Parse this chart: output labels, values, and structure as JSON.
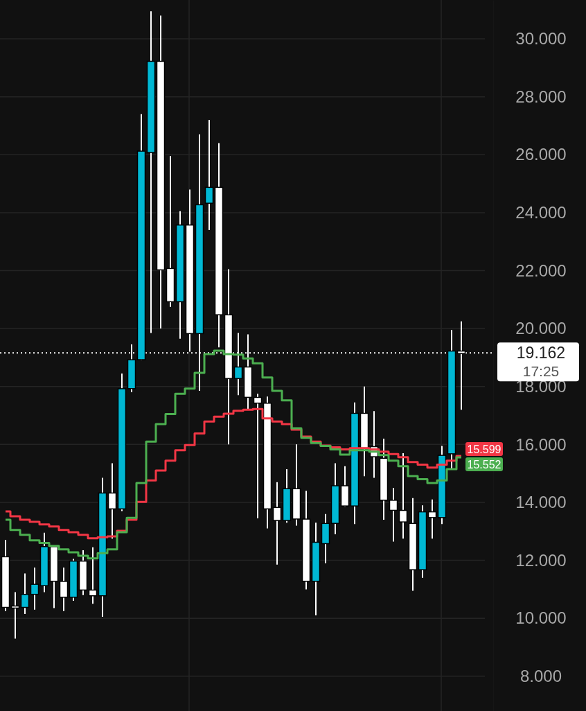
{
  "chart_data": {
    "type": "candlestick",
    "categories": [
      null,
      null,
      null,
      null,
      null,
      null,
      null,
      null,
      null,
      null,
      null,
      null,
      null,
      null,
      null,
      null,
      null,
      null,
      null,
      null,
      null,
      null,
      null,
      null,
      null,
      null,
      null,
      null,
      null,
      null,
      null,
      null,
      null,
      null,
      null,
      null,
      null,
      null,
      null,
      null,
      null,
      null,
      null,
      null,
      null,
      null,
      null,
      null
    ],
    "ohlc": [
      [
        12.1,
        12.7,
        10.25,
        10.4
      ],
      [
        10.4,
        10.9,
        9.3,
        10.4
      ],
      [
        10.4,
        11.55,
        10.15,
        10.8
      ],
      [
        10.85,
        11.75,
        10.3,
        11.15
      ],
      [
        11.15,
        12.95,
        10.9,
        12.45
      ],
      [
        12.45,
        12.45,
        10.35,
        11.3
      ],
      [
        11.25,
        11.75,
        10.25,
        10.75
      ],
      [
        10.75,
        12.05,
        10.6,
        11.95
      ],
      [
        11.95,
        12.35,
        10.8,
        11.0
      ],
      [
        10.95,
        12.45,
        10.5,
        10.8
      ],
      [
        10.8,
        14.85,
        10.05,
        14.3
      ],
      [
        14.3,
        15.35,
        12.75,
        13.8
      ],
      [
        13.8,
        18.45,
        13.7,
        17.9
      ],
      [
        17.95,
        19.45,
        17.8,
        18.9
      ],
      [
        18.95,
        27.4,
        18.9,
        26.1
      ],
      [
        26.1,
        30.95,
        19.85,
        29.2
      ],
      [
        29.2,
        30.8,
        20.0,
        22.05
      ],
      [
        22.05,
        25.95,
        20.75,
        20.95
      ],
      [
        20.95,
        24.05,
        19.65,
        23.55
      ],
      [
        23.55,
        24.8,
        19.2,
        19.85
      ],
      [
        19.85,
        26.7,
        17.85,
        24.25
      ],
      [
        24.35,
        27.2,
        23.4,
        24.85
      ],
      [
        24.85,
        26.4,
        19.35,
        20.5
      ],
      [
        20.45,
        22.05,
        16.0,
        18.3
      ],
      [
        18.3,
        19.85,
        17.7,
        18.65
      ],
      [
        18.65,
        19.8,
        17.2,
        17.65
      ],
      [
        17.6,
        17.75,
        13.45,
        17.45
      ],
      [
        17.4,
        17.65,
        13.1,
        13.8
      ],
      [
        13.8,
        14.7,
        11.85,
        13.4
      ],
      [
        13.4,
        15.15,
        13.3,
        14.45
      ],
      [
        14.45,
        16.0,
        13.2,
        13.45
      ],
      [
        13.4,
        14.4,
        11.0,
        11.3
      ],
      [
        11.3,
        13.3,
        10.1,
        12.6
      ],
      [
        12.6,
        13.6,
        11.9,
        13.25
      ],
      [
        13.3,
        15.35,
        12.9,
        14.55
      ],
      [
        14.55,
        15.25,
        13.85,
        13.9
      ],
      [
        13.9,
        17.45,
        13.25,
        17.05
      ],
      [
        17.05,
        18.0,
        14.9,
        15.9
      ],
      [
        15.9,
        17.15,
        14.85,
        15.6
      ],
      [
        15.5,
        16.2,
        13.4,
        14.1
      ],
      [
        14.05,
        14.5,
        12.65,
        13.75
      ],
      [
        13.7,
        15.7,
        12.75,
        13.35
      ],
      [
        13.25,
        14.15,
        10.95,
        11.7
      ],
      [
        11.7,
        13.9,
        11.4,
        13.65
      ],
      [
        13.65,
        14.1,
        12.75,
        13.5
      ],
      [
        13.5,
        15.95,
        13.25,
        15.6
      ],
      [
        15.7,
        19.95,
        15.15,
        19.2
      ],
      [
        19.2,
        20.25,
        17.2,
        19.162
      ]
    ],
    "colors": [
      "#ffffff",
      "#ffffff",
      "#00b8d4",
      "#00b8d4",
      "#00b8d4",
      "#ffffff",
      "#ffffff",
      "#00b8d4",
      "#ffffff",
      "#ffffff",
      "#00b8d4",
      "#ffffff",
      "#00b8d4",
      "#00b8d4",
      "#00b8d4",
      "#00b8d4",
      "#ffffff",
      "#ffffff",
      "#00b8d4",
      "#ffffff",
      "#00b8d4",
      "#00b8d4",
      "#ffffff",
      "#ffffff",
      "#00b8d4",
      "#ffffff",
      "#ffffff",
      "#ffffff",
      "#ffffff",
      "#00b8d4",
      "#ffffff",
      "#ffffff",
      "#00b8d4",
      "#00b8d4",
      "#00b8d4",
      "#ffffff",
      "#00b8d4",
      "#ffffff",
      "#ffffff",
      "#ffffff",
      "#ffffff",
      "#ffffff",
      "#ffffff",
      "#00b8d4",
      "#ffffff",
      "#00b8d4",
      "#00b8d4",
      "#ffffff"
    ],
    "series": [
      {
        "type": "step",
        "color": "#f23645",
        "values": [
          13.69,
          13.52,
          13.4,
          13.33,
          13.24,
          13.17,
          13.05,
          12.97,
          12.88,
          12.76,
          12.8,
          12.83,
          13.02,
          13.4,
          14.02,
          14.76,
          15.1,
          15.44,
          15.8,
          15.98,
          16.38,
          16.79,
          16.96,
          17.06,
          17.16,
          17.2,
          17.22,
          16.9,
          16.79,
          16.7,
          16.51,
          16.27,
          16.1,
          15.96,
          15.9,
          15.83,
          15.87,
          15.87,
          15.83,
          15.75,
          15.67,
          15.56,
          15.39,
          15.3,
          15.2,
          15.3,
          15.44,
          15.599
        ],
        "value_labels": [
          null,
          null,
          null,
          null,
          null,
          null,
          null,
          null,
          null,
          null,
          null,
          null,
          null,
          null,
          null,
          null,
          null,
          null,
          null,
          null,
          null,
          null,
          null,
          null,
          null,
          null,
          null,
          null,
          null,
          null,
          null,
          null,
          null,
          null,
          null,
          null,
          null,
          null,
          null,
          null,
          null,
          null,
          null,
          null,
          null,
          null,
          null,
          "15.599"
        ]
      },
      {
        "type": "step",
        "color": "#4caf50",
        "values": [
          13.4,
          13.05,
          12.88,
          12.69,
          12.6,
          12.5,
          12.38,
          12.28,
          12.16,
          12.07,
          12.25,
          12.38,
          12.97,
          13.47,
          14.67,
          16.1,
          16.7,
          17.05,
          17.75,
          17.93,
          18.47,
          19.12,
          19.24,
          19.12,
          19.1,
          18.97,
          18.8,
          18.31,
          17.85,
          17.52,
          16.56,
          16.23,
          16.05,
          15.95,
          15.83,
          15.65,
          15.8,
          15.8,
          15.75,
          15.63,
          15.44,
          15.25,
          14.91,
          14.8,
          14.67,
          14.76,
          15.15,
          15.552
        ],
        "value_labels": [
          null,
          null,
          null,
          null,
          null,
          null,
          null,
          null,
          null,
          null,
          null,
          null,
          null,
          null,
          null,
          null,
          null,
          null,
          null,
          null,
          null,
          null,
          null,
          null,
          null,
          null,
          null,
          null,
          null,
          null,
          null,
          null,
          null,
          null,
          null,
          null,
          null,
          null,
          null,
          null,
          null,
          null,
          null,
          null,
          null,
          null,
          null,
          "15.552"
        ]
      }
    ],
    "ylim": [
      6.8,
      31.34
    ],
    "yticks": [
      {
        "value": 8,
        "label": "8.000"
      },
      {
        "value": 10,
        "label": "10.000"
      },
      {
        "value": 12,
        "label": "12.000"
      },
      {
        "value": 14,
        "label": "14.000"
      },
      {
        "value": 16,
        "label": "16.000"
      },
      {
        "value": 18,
        "label": "18.000"
      },
      {
        "value": 20,
        "label": "20.000"
      },
      {
        "value": 22,
        "label": "22.000"
      },
      {
        "value": 24,
        "label": "24.000"
      },
      {
        "value": 26,
        "label": "26.000"
      },
      {
        "value": 28,
        "label": "28.000"
      },
      {
        "value": 30,
        "label": "30.000"
      }
    ],
    "ref_lines": [
      {
        "axis": "y",
        "value": 19.162,
        "label": "19.162",
        "line_style": "dotted",
        "color": "#ffffff"
      }
    ],
    "annotations": [
      "17:25"
    ],
    "grid": true,
    "tick_labels": "y"
  }
}
